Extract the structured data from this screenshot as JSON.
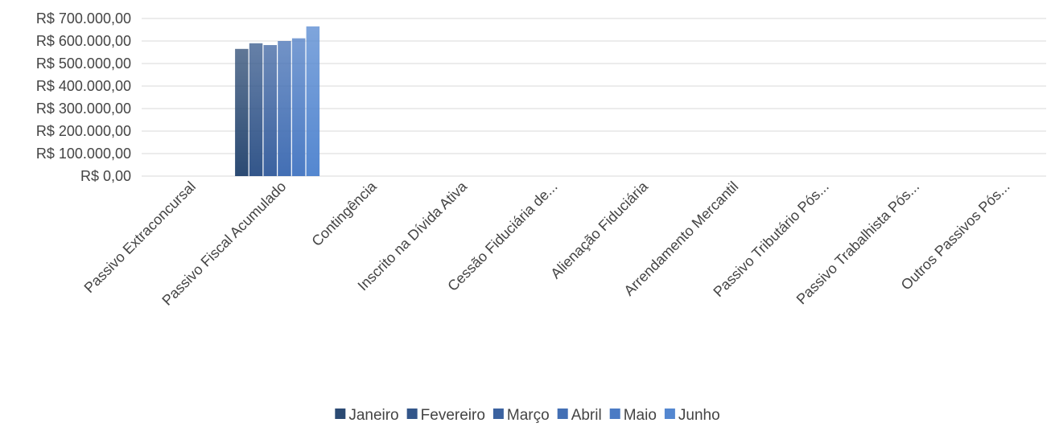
{
  "chart_data": {
    "type": "bar",
    "title": "",
    "xlabel": "",
    "ylabel": "",
    "ylim": [
      0,
      700000
    ],
    "y_ticks": [
      {
        "value": 0,
        "label": "R$ 0,00"
      },
      {
        "value": 100000,
        "label": "R$ 100.000,00"
      },
      {
        "value": 200000,
        "label": "R$ 200.000,00"
      },
      {
        "value": 300000,
        "label": "R$ 300.000,00"
      },
      {
        "value": 400000,
        "label": "R$ 400.000,00"
      },
      {
        "value": 500000,
        "label": "R$ 500.000,00"
      },
      {
        "value": 600000,
        "label": "R$ 600.000,00"
      },
      {
        "value": 700000,
        "label": "R$ 700.000,00"
      }
    ],
    "grid": true,
    "legend_position": "bottom",
    "categories": [
      "Passivo Extraconcursal",
      "Passivo Fiscal Acumulado",
      "Contingência",
      "Inscrito na Dívida Ativa",
      "Cessão Fiduciária de...",
      "Alienação Fiduciária",
      "Arrendamento Mercantil",
      "Passivo Tributário Pós...",
      "Passivo Trabalhista Pós...",
      "Outros Passivos Pós..."
    ],
    "series": [
      {
        "name": "Janeiro",
        "color": "#2b4a73",
        "values": [
          0,
          565000,
          0,
          0,
          0,
          0,
          0,
          0,
          0,
          0
        ]
      },
      {
        "name": "Fevereiro",
        "color": "#33568a",
        "values": [
          0,
          590000,
          0,
          0,
          0,
          0,
          0,
          0,
          0,
          0
        ]
      },
      {
        "name": "Março",
        "color": "#3b62a0",
        "values": [
          0,
          582000,
          0,
          0,
          0,
          0,
          0,
          0,
          0,
          0
        ]
      },
      {
        "name": "Abril",
        "color": "#436fb4",
        "values": [
          0,
          600000,
          0,
          0,
          0,
          0,
          0,
          0,
          0,
          0
        ]
      },
      {
        "name": "Maio",
        "color": "#4b7bc4",
        "values": [
          0,
          612000,
          0,
          0,
          0,
          0,
          0,
          0,
          0,
          0
        ]
      },
      {
        "name": "Junho",
        "color": "#5487d0",
        "values": [
          0,
          665000,
          0,
          0,
          0,
          0,
          0,
          0,
          0,
          0
        ]
      }
    ]
  }
}
